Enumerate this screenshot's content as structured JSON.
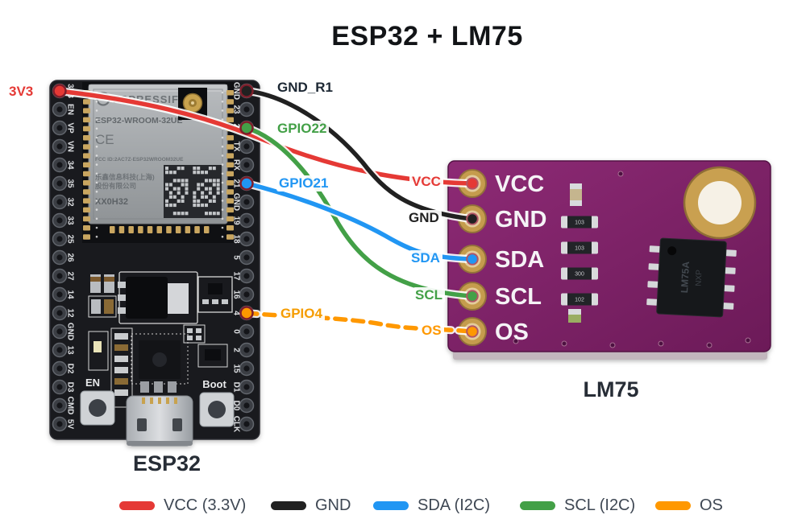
{
  "title": "ESP32 + LM75",
  "boards": {
    "esp32": {
      "caption": "ESP32",
      "shield": {
        "brand": "ESPRESSIF",
        "model": "ESP32-WROOM-32UE",
        "ce": "CE",
        "fcc": "FCC ID:2AC7Z-ESP32WROOM32UE",
        "cn_line1": "乐鑫信息科技(上海)",
        "cn_line2": "股份有限公司",
        "lot": "XX0H32"
      },
      "buttons": {
        "en": "EN",
        "boot": "Boot"
      },
      "left_pins": [
        "3V3",
        "EN",
        "VP",
        "VN",
        "34",
        "35",
        "32",
        "33",
        "25",
        "26",
        "27",
        "14",
        "12",
        "GND",
        "13",
        "D2",
        "D3",
        "CMD",
        "5V"
      ],
      "right_pins": [
        "GND",
        "23",
        "22",
        "TX",
        "RX",
        "21",
        "GND",
        "19",
        "18",
        "5",
        "17",
        "16",
        "4",
        "0",
        "2",
        "15",
        "D1",
        "D0",
        "CLK"
      ]
    },
    "lm75": {
      "caption": "LM75",
      "pins": [
        "VCC",
        "GND",
        "SDA",
        "SCL",
        "OS"
      ],
      "resistors": [
        "103",
        "103",
        "300",
        "102"
      ],
      "chip": {
        "mfr": "NXP",
        "part": "LM75A"
      }
    }
  },
  "wires": [
    {
      "esp32_label": "3V3",
      "lm75_label": "VCC",
      "color": "#e53935",
      "label_color": "#e53935",
      "style": "solid"
    },
    {
      "esp32_label": "GND_R1",
      "lm75_label": "GND",
      "color": "#212121",
      "label_color": "#1c2733",
      "style": "solid"
    },
    {
      "esp32_label": "GPIO21",
      "lm75_label": "SDA",
      "color": "#2196f3",
      "label_color": "#2196f3",
      "style": "solid"
    },
    {
      "esp32_label": "GPIO22",
      "lm75_label": "SCL",
      "color": "#43a047",
      "label_color": "#43a047",
      "style": "solid"
    },
    {
      "esp32_label": "GPIO4",
      "lm75_label": "OS",
      "color": "#ff9800",
      "label_color": "#f59c00",
      "style": "dashed"
    }
  ],
  "legend": [
    {
      "label": "VCC (3.3V)",
      "color": "#e53935"
    },
    {
      "label": "GND",
      "color": "#212121"
    },
    {
      "label": "SDA (I2C)",
      "color": "#2196f3"
    },
    {
      "label": "SCL (I2C)",
      "color": "#43a047"
    },
    {
      "label": "OS",
      "color": "#ff9800"
    }
  ]
}
